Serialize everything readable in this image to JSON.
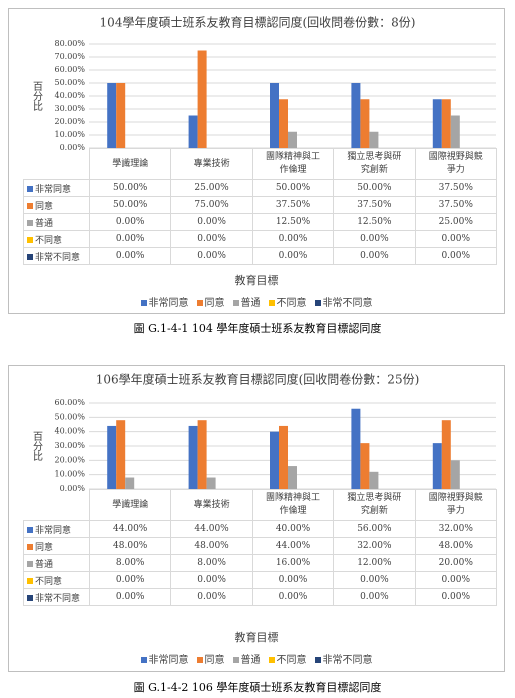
{
  "chart_data": [
    {
      "type": "bar",
      "title": "104學年度碩士班系友教育目標認同度(回收問卷份數：8份)",
      "y_axis_title": "百分比",
      "x_axis_title": "教育目標",
      "caption": "圖 G.1-4-1 104 學年度碩士班系友教育目標認同度",
      "categories": [
        "學識理論",
        "專業技術",
        "團隊精神與工作倫理",
        "獨立思考與研究創新",
        "國際視野與競爭力"
      ],
      "ylim": [
        0,
        80
      ],
      "yticks": [
        {
          "value": 0,
          "label": "0.00%"
        },
        {
          "value": 10,
          "label": "10.00%"
        },
        {
          "value": 20,
          "label": "20.00%"
        },
        {
          "value": 30,
          "label": "30.00%"
        },
        {
          "value": 40,
          "label": "40.00%"
        },
        {
          "value": 50,
          "label": "50.00%"
        },
        {
          "value": 60,
          "label": "60.00%"
        },
        {
          "value": 70,
          "label": "70.00%"
        },
        {
          "value": 80,
          "label": "80.00%"
        }
      ],
      "grid": true,
      "series": [
        {
          "name": "非常同意",
          "color": "#4472c4",
          "values": [
            50,
            25,
            50,
            50,
            37.5
          ],
          "value_labels": [
            "50.00%",
            "25.00%",
            "50.00%",
            "50.00%",
            "37.50%"
          ]
        },
        {
          "name": "同意",
          "color": "#ed7d31",
          "values": [
            50,
            75,
            37.5,
            37.5,
            37.5
          ],
          "value_labels": [
            "50.00%",
            "75.00%",
            "37.50%",
            "37.50%",
            "37.50%"
          ]
        },
        {
          "name": "普通",
          "color": "#a5a5a5",
          "values": [
            0,
            0,
            12.5,
            12.5,
            25
          ],
          "value_labels": [
            "0.00%",
            "0.00%",
            "12.50%",
            "12.50%",
            "25.00%"
          ]
        },
        {
          "name": "不同意",
          "color": "#ffc000",
          "values": [
            0,
            0,
            0,
            0,
            0
          ],
          "value_labels": [
            "0.00%",
            "0.00%",
            "0.00%",
            "0.00%",
            "0.00%"
          ]
        },
        {
          "name": "非常不同意",
          "color": "#264478",
          "values": [
            0,
            0,
            0,
            0,
            0
          ],
          "value_labels": [
            "0.00%",
            "0.00%",
            "0.00%",
            "0.00%",
            "0.00%"
          ]
        }
      ]
    },
    {
      "type": "bar",
      "title": "106學年度碩士班系友教育目標認同度(回收問卷份數：25份)",
      "y_axis_title": "百分比",
      "x_axis_title": "教育目標",
      "caption": "圖 G.1-4-2 106 學年度碩士班系友教育目標認同度",
      "categories": [
        "學識理論",
        "專業技術",
        "團隊精神與工作倫理",
        "獨立思考與研究創新",
        "國際視野與競爭力"
      ],
      "ylim": [
        0,
        60
      ],
      "yticks": [
        {
          "value": 0,
          "label": "0.00%"
        },
        {
          "value": 10,
          "label": "10.00%"
        },
        {
          "value": 20,
          "label": "20.00%"
        },
        {
          "value": 30,
          "label": "30.00%"
        },
        {
          "value": 40,
          "label": "40.00%"
        },
        {
          "value": 50,
          "label": "50.00%"
        },
        {
          "value": 60,
          "label": "60.00%"
        }
      ],
      "grid": true,
      "series": [
        {
          "name": "非常同意",
          "color": "#4472c4",
          "values": [
            44,
            44,
            40,
            56,
            32
          ],
          "value_labels": [
            "44.00%",
            "44.00%",
            "40.00%",
            "56.00%",
            "32.00%"
          ]
        },
        {
          "name": "同意",
          "color": "#ed7d31",
          "values": [
            48,
            48,
            44,
            32,
            48
          ],
          "value_labels": [
            "48.00%",
            "48.00%",
            "44.00%",
            "32.00%",
            "48.00%"
          ]
        },
        {
          "name": "普通",
          "color": "#a5a5a5",
          "values": [
            8,
            8,
            16,
            12,
            20
          ],
          "value_labels": [
            "8.00%",
            "8.00%",
            "16.00%",
            "12.00%",
            "20.00%"
          ]
        },
        {
          "name": "不同意",
          "color": "#ffc000",
          "values": [
            0,
            0,
            0,
            0,
            0
          ],
          "value_labels": [
            "0.00%",
            "0.00%",
            "0.00%",
            "0.00%",
            "0.00%"
          ]
        },
        {
          "name": "非常不同意",
          "color": "#264478",
          "values": [
            0,
            0,
            0,
            0,
            0
          ],
          "value_labels": [
            "0.00%",
            "0.00%",
            "0.00%",
            "0.00%",
            "0.00%"
          ]
        }
      ]
    }
  ]
}
